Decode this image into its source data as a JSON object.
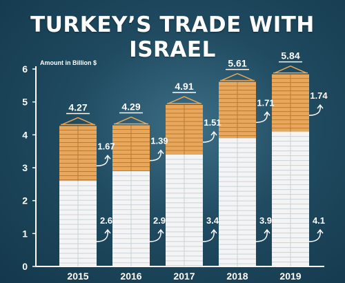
{
  "title": "TURKEY’S TRADE WITH ISRAEL",
  "colors": {
    "top_segment": "#e8a75a",
    "bottom_segment": "#f4f4f4",
    "axis": "#ffffff"
  },
  "chart_data": {
    "type": "bar",
    "stacked": true,
    "title": "TURKEY’S TRADE WITH ISRAEL",
    "ylabel": "Amount in Billion $",
    "xlabel": "",
    "ylim": [
      0,
      6
    ],
    "yticks": [
      0,
      1,
      2,
      3,
      4,
      5,
      6
    ],
    "categories": [
      "2015",
      "2016",
      "2017",
      "2018",
      "2019"
    ],
    "series": [
      {
        "values": [
          2.6,
          2.9,
          3.4,
          3.9,
          4.1
        ],
        "color": "#f4f4f4"
      },
      {
        "values": [
          1.67,
          1.39,
          1.51,
          1.71,
          1.74
        ],
        "color": "#e8a75a"
      }
    ],
    "totals": [
      4.27,
      4.29,
      4.91,
      5.61,
      5.84
    ],
    "bottom_labels": [
      "2.6",
      "2.9",
      "3.4",
      "3.9",
      "4.1"
    ],
    "top_labels": [
      "1.67",
      "1.39",
      "1.51",
      "1.71",
      "1.74"
    ],
    "total_labels": [
      "4.27",
      "4.29",
      "4.91",
      "5.61",
      "5.84"
    ],
    "grid": false
  }
}
